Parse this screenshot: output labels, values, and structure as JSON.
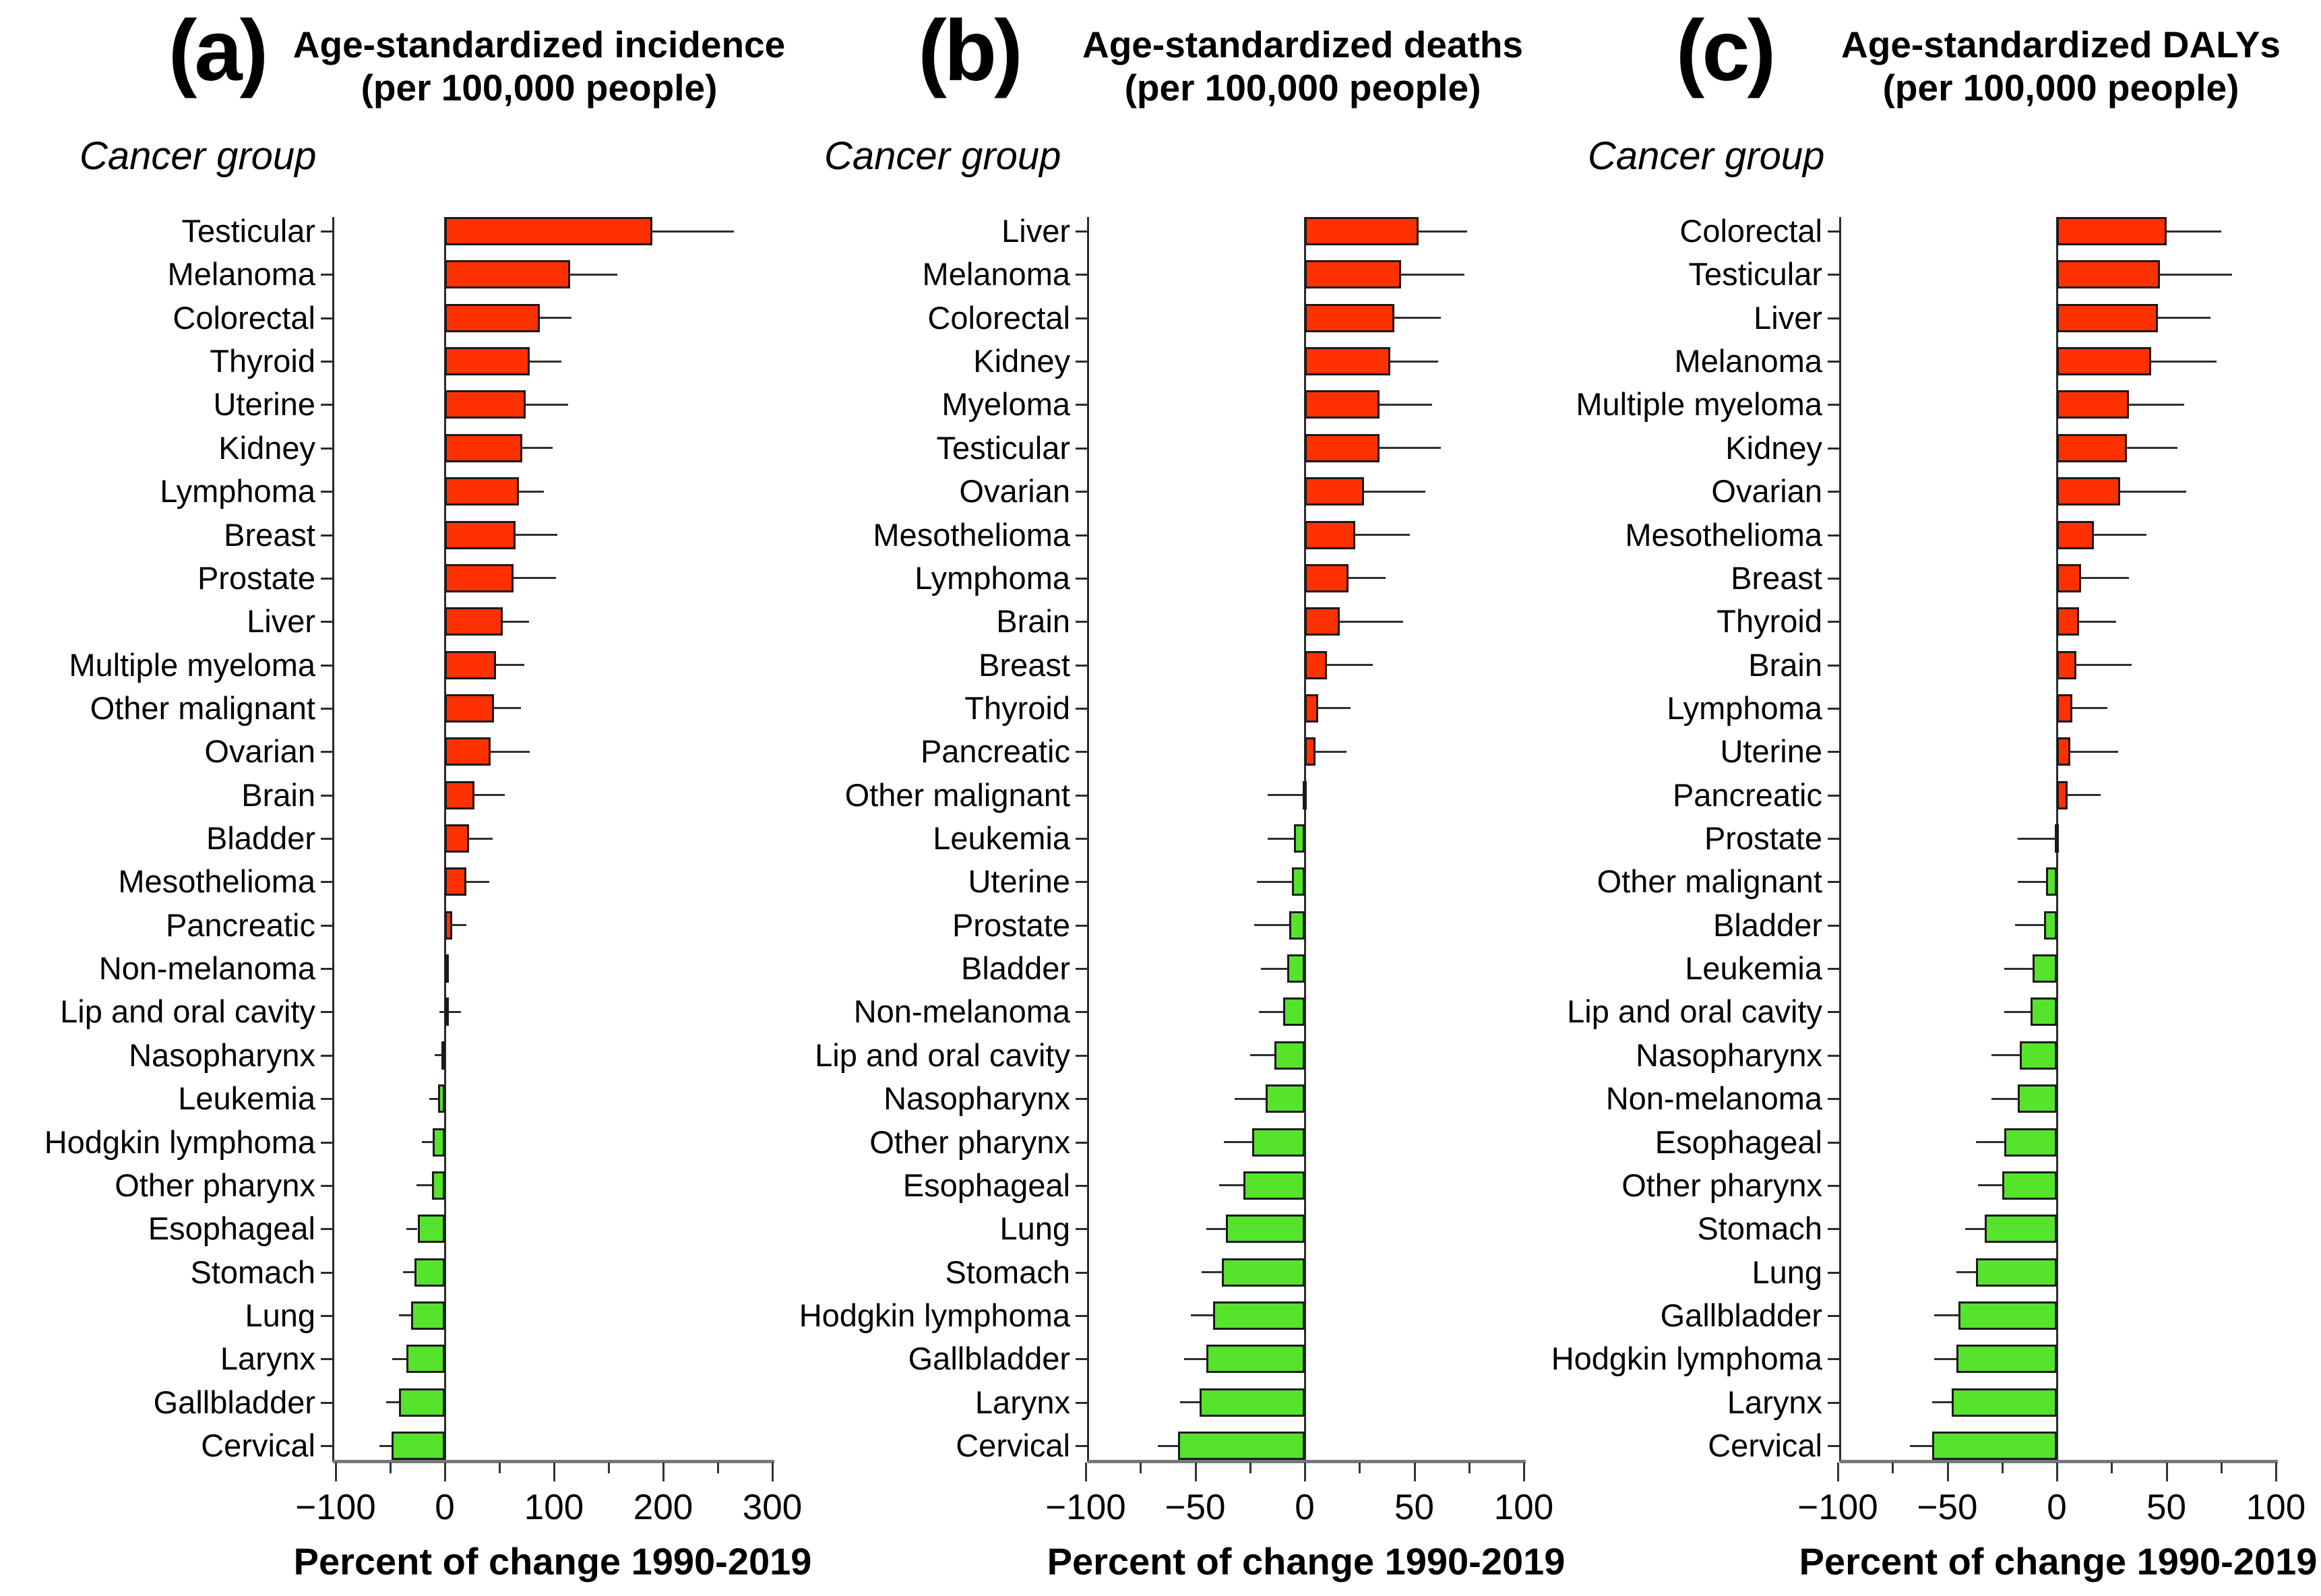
{
  "figure": {
    "bar_positive_color": "#ff3100",
    "bar_negative_color": "#55e32c",
    "bar_border_color": "#1a1a1a",
    "whisker_color": "#2e2e2e",
    "axis_color": "#787878"
  },
  "chart_data": [
    {
      "type": "bar",
      "panel_letter": "(a)",
      "title": "Age-standardized incidence",
      "subtitle": "(per 100,000 people)",
      "ylabel": "Cancer group",
      "xlabel": "Percent of change 1990-2019",
      "xlim": [
        -100,
        300
      ],
      "xticks": [
        -100,
        0,
        100,
        200,
        300
      ],
      "xtick_labels": [
        "−100",
        "0",
        "100",
        "200",
        "300"
      ],
      "minor_step": 50,
      "legend": "none",
      "grid": false,
      "categories": [
        "Testicular",
        "Melanoma",
        "Colorectal",
        "Thyroid",
        "Uterine",
        "Kidney",
        "Lymphoma",
        "Breast",
        "Prostate",
        "Liver",
        "Multiple myeloma",
        "Other malignant",
        "Ovarian",
        "Brain",
        "Bladder",
        "Mesothelioma",
        "Pancreatic",
        "Non-melanoma",
        "Lip and oral cavity",
        "Nasopharynx",
        "Leukemia",
        "Hodgkin lymphoma",
        "Other pharynx",
        "Esophageal",
        "Stomach",
        "Lung",
        "Larynx",
        "Gallbladder",
        "Cervical"
      ],
      "values": [
        190,
        115,
        87,
        78,
        74,
        71,
        68,
        65,
        63,
        53,
        47,
        45,
        42,
        27,
        22,
        20,
        7,
        0.5,
        1,
        -3,
        -6,
        -11,
        -12,
        -25,
        -28,
        -31,
        -35,
        -42,
        -49
      ],
      "ci": [
        [
          190,
          265
        ],
        [
          115,
          158
        ],
        [
          87,
          116
        ],
        [
          78,
          107
        ],
        [
          74,
          113
        ],
        [
          71,
          99
        ],
        [
          68,
          91
        ],
        [
          65,
          103
        ],
        [
          63,
          102
        ],
        [
          53,
          77
        ],
        [
          47,
          73
        ],
        [
          45,
          70
        ],
        [
          42,
          78
        ],
        [
          27,
          55
        ],
        [
          22,
          44
        ],
        [
          20,
          41
        ],
        [
          7,
          20
        ],
        [
          0.5,
          3
        ],
        [
          -5,
          15
        ],
        [
          -9,
          -3
        ],
        [
          -14,
          -6
        ],
        [
          -21,
          -11
        ],
        [
          -26,
          -12
        ],
        [
          -35,
          -25
        ],
        [
          -38,
          -28
        ],
        [
          -42,
          -31
        ],
        [
          -48,
          -35
        ],
        [
          -54,
          -42
        ],
        [
          -60,
          -49
        ]
      ]
    },
    {
      "type": "bar",
      "panel_letter": "(b)",
      "title": "Age-standardized deaths",
      "subtitle": "(per 100,000 people)",
      "ylabel": "Cancer group",
      "xlabel": "Percent of change 1990-2019",
      "xlim": [
        -100,
        100
      ],
      "xticks": [
        -100,
        -50,
        0,
        50,
        100
      ],
      "xtick_labels": [
        "−100",
        "−50",
        "0",
        "50",
        "100"
      ],
      "minor_step": 25,
      "legend": "none",
      "grid": false,
      "categories": [
        "Liver",
        "Melanoma",
        "Colorectal",
        "Kidney",
        "Myeloma",
        "Testicular",
        "Ovarian",
        "Mesothelioma",
        "Lymphoma",
        "Brain",
        "Breast",
        "Thyroid",
        "Pancreatic",
        "Other malignant",
        "Leukemia",
        "Uterine",
        "Prostate",
        "Bladder",
        "Non-melanoma",
        "Lip and oral cavity",
        "Nasopharynx",
        "Other pharynx",
        "Esophageal",
        "Lung",
        "Stomach",
        "Hodgkin lymphoma",
        "Gallbladder",
        "Larynx",
        "Cervical"
      ],
      "values": [
        52,
        44,
        41,
        39,
        34,
        34,
        27,
        23,
        20,
        16,
        10,
        6,
        5,
        -1,
        -5,
        -6,
        -7,
        -8,
        -10,
        -14,
        -18,
        -24,
        -28,
        -36,
        -38,
        -42,
        -45,
        -48,
        -58
      ],
      "ci": [
        [
          52,
          74
        ],
        [
          44,
          73
        ],
        [
          41,
          62
        ],
        [
          39,
          61
        ],
        [
          34,
          58
        ],
        [
          34,
          62
        ],
        [
          27,
          55
        ],
        [
          23,
          48
        ],
        [
          20,
          37
        ],
        [
          16,
          45
        ],
        [
          10,
          31
        ],
        [
          6,
          21
        ],
        [
          5,
          19
        ],
        [
          -17,
          1
        ],
        [
          -17,
          -5
        ],
        [
          -22,
          -6
        ],
        [
          -23,
          -7
        ],
        [
          -20,
          -8
        ],
        [
          -21,
          -10
        ],
        [
          -25,
          -14
        ],
        [
          -32,
          -18
        ],
        [
          -37,
          -24
        ],
        [
          -39,
          -28
        ],
        [
          -45,
          -36
        ],
        [
          -47,
          -38
        ],
        [
          -52,
          -42
        ],
        [
          -55,
          -45
        ],
        [
          -57,
          -48
        ],
        [
          -67,
          -58
        ]
      ]
    },
    {
      "type": "bar",
      "panel_letter": "(c)",
      "title": "Age-standardized DALYs",
      "subtitle": "(per 100,000 people)",
      "ylabel": "Cancer group",
      "xlabel": "Percent of change 1990-2019",
      "xlim": [
        -100,
        100
      ],
      "xticks": [
        -100,
        -50,
        0,
        50,
        100
      ],
      "xtick_labels": [
        "−100",
        "−50",
        "0",
        "50",
        "100"
      ],
      "minor_step": 25,
      "legend": "none",
      "grid": false,
      "categories": [
        "Colorectal",
        "Testicular",
        "Liver",
        "Melanoma",
        "Multiple myeloma",
        "Kidney",
        "Ovarian",
        "Mesothelioma",
        "Breast",
        "Thyroid",
        "Brain",
        "Lymphoma",
        "Uterine",
        "Pancreatic",
        "Prostate",
        "Other malignant",
        "Bladder",
        "Leukemia",
        "Lip and oral cavity",
        "Nasopharynx",
        "Non-melanoma",
        "Esophageal",
        "Other pharynx",
        "Stomach",
        "Lung",
        "Gallbladder",
        "Hodgkin lymphoma",
        "Larynx",
        "Cervical"
      ],
      "values": [
        50,
        47,
        46,
        43,
        33,
        32,
        29,
        17,
        11,
        10,
        9,
        7,
        6,
        5,
        -1,
        -5,
        -6,
        -11,
        -12,
        -17,
        -18,
        -24,
        -25,
        -33,
        -37,
        -45,
        -46,
        -48,
        -57
      ],
      "ci": [
        [
          50,
          75
        ],
        [
          47,
          80
        ],
        [
          46,
          70
        ],
        [
          43,
          73
        ],
        [
          33,
          58
        ],
        [
          32,
          55
        ],
        [
          29,
          59
        ],
        [
          17,
          41
        ],
        [
          11,
          33
        ],
        [
          10,
          27
        ],
        [
          9,
          34
        ],
        [
          7,
          23
        ],
        [
          6,
          28
        ],
        [
          5,
          20
        ],
        [
          -18,
          1
        ],
        [
          -18,
          -5
        ],
        [
          -19,
          -6
        ],
        [
          -24,
          -11
        ],
        [
          -24,
          -12
        ],
        [
          -30,
          -17
        ],
        [
          -30,
          -18
        ],
        [
          -37,
          -24
        ],
        [
          -36,
          -25
        ],
        [
          -42,
          -33
        ],
        [
          -46,
          -37
        ],
        [
          -56,
          -45
        ],
        [
          -56,
          -46
        ],
        [
          -57,
          -48
        ],
        [
          -67,
          -57
        ]
      ]
    }
  ]
}
